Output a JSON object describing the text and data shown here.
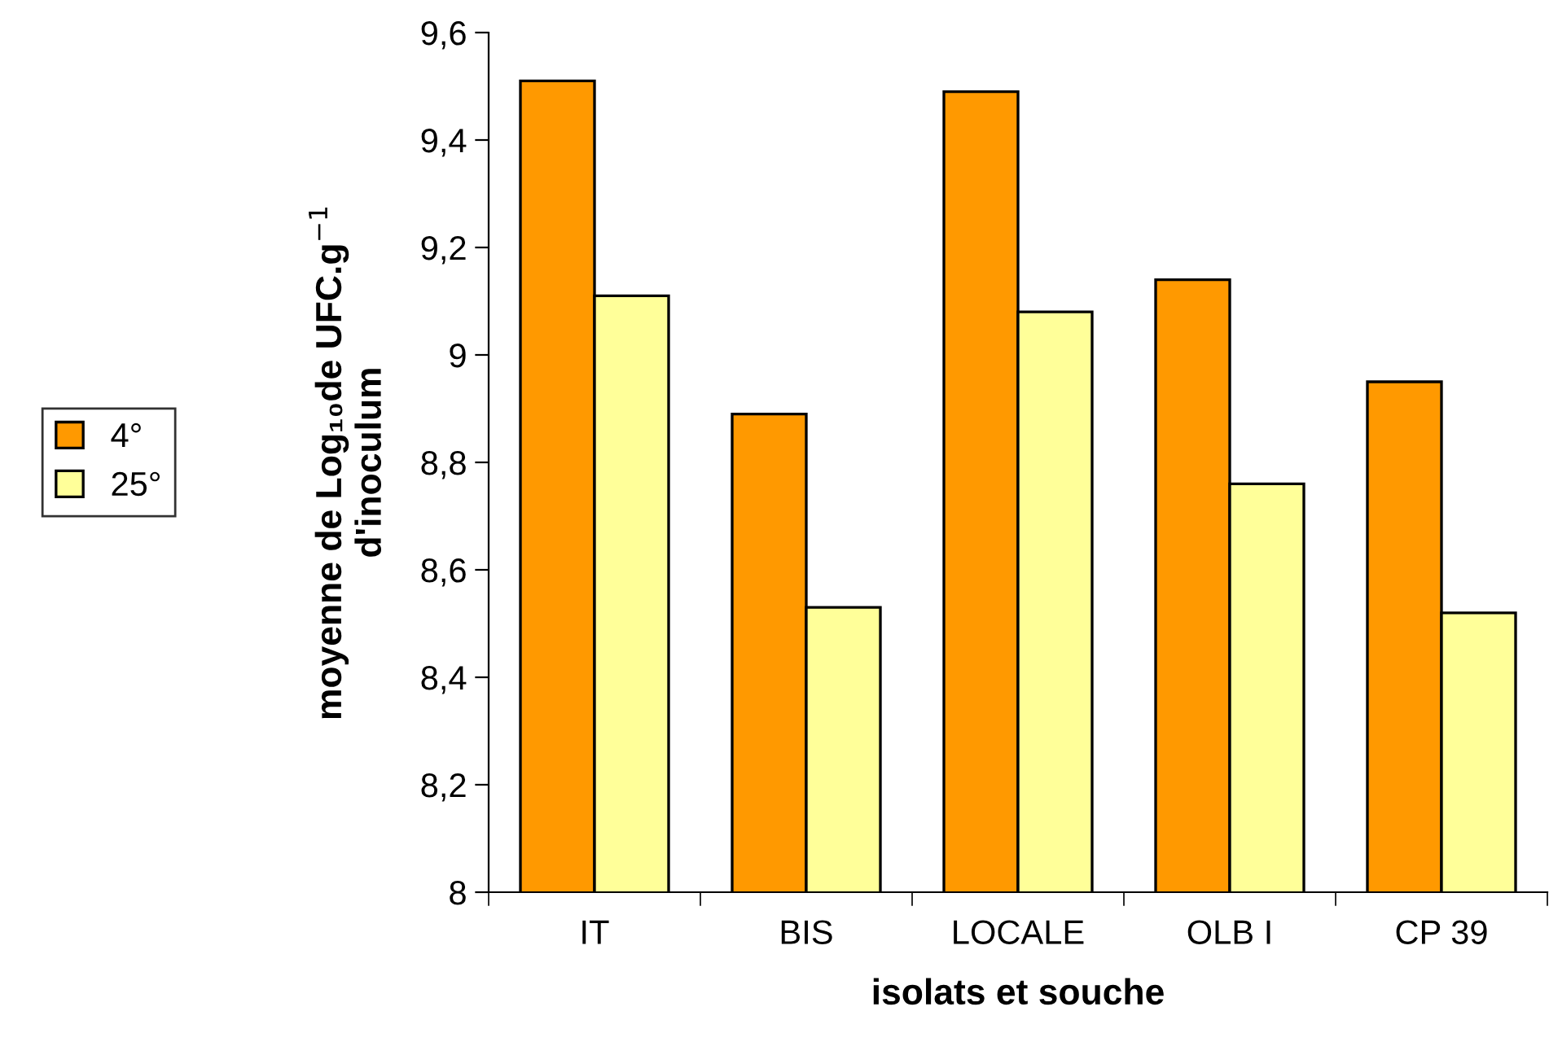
{
  "chart_data": {
    "type": "bar",
    "xlabel": "isolats et souche",
    "ylabel": "moyenne de Log₁₀de UFC.g$^{−1}$\nd'inoculum",
    "categories": [
      "IT",
      "BIS",
      "LOCALE",
      "OLB I",
      "CP 39"
    ],
    "series": [
      {
        "name": "4°",
        "color": "#ff9900",
        "values": [
          9.51,
          8.89,
          9.49,
          9.14,
          8.95
        ]
      },
      {
        "name": "25°",
        "color": "#ffff99",
        "values": [
          9.11,
          8.53,
          9.08,
          8.76,
          8.52
        ]
      }
    ],
    "ylim": [
      8,
      9.6
    ],
    "yticks": [
      {
        "value": 8,
        "label": "8"
      },
      {
        "value": 8.2,
        "label": "8,2"
      },
      {
        "value": 8.4,
        "label": "8,4"
      },
      {
        "value": 8.6,
        "label": "8,6"
      },
      {
        "value": 8.8,
        "label": "8,8"
      },
      {
        "value": 9,
        "label": "9"
      },
      {
        "value": 9.2,
        "label": "9,2"
      },
      {
        "value": 9.4,
        "label": "9,4"
      },
      {
        "value": 9.6,
        "label": "9,6"
      }
    ],
    "grid": false,
    "legend": "left"
  }
}
